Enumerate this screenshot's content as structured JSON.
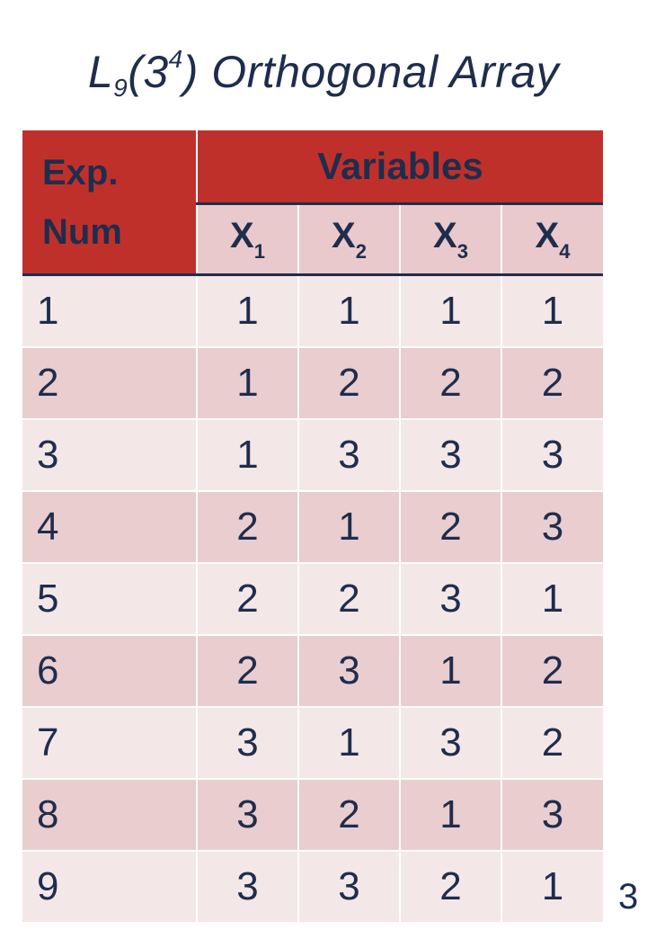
{
  "title": {
    "main": "L",
    "sub": "9",
    "paren_open": "(3",
    "sup": "4",
    "rest": ") Orthogonal Array"
  },
  "header": {
    "exp_line1": "Exp.",
    "exp_line2": "Num",
    "variables": "Variables",
    "columns": [
      {
        "letter": "X",
        "sub": "1"
      },
      {
        "letter": "X",
        "sub": "2"
      },
      {
        "letter": "X",
        "sub": "3"
      },
      {
        "letter": "X",
        "sub": "4"
      }
    ]
  },
  "rows": [
    {
      "exp": "1",
      "values": [
        "1",
        "1",
        "1",
        "1"
      ]
    },
    {
      "exp": "2",
      "values": [
        "1",
        "2",
        "2",
        "2"
      ]
    },
    {
      "exp": "3",
      "values": [
        "1",
        "3",
        "3",
        "3"
      ]
    },
    {
      "exp": "4",
      "values": [
        "2",
        "1",
        "2",
        "3"
      ]
    },
    {
      "exp": "5",
      "values": [
        "2",
        "2",
        "3",
        "1"
      ]
    },
    {
      "exp": "6",
      "values": [
        "2",
        "3",
        "1",
        "2"
      ]
    },
    {
      "exp": "7",
      "values": [
        "3",
        "1",
        "3",
        "2"
      ]
    },
    {
      "exp": "8",
      "values": [
        "3",
        "2",
        "1",
        "3"
      ]
    },
    {
      "exp": "9",
      "values": [
        "3",
        "3",
        "2",
        "1"
      ]
    }
  ],
  "page_number": "3",
  "colors": {
    "header_red": "#c0302b",
    "text_navy": "#1f2d4d",
    "row_light": "#f3e7e8",
    "row_dark": "#e9cdcf"
  }
}
